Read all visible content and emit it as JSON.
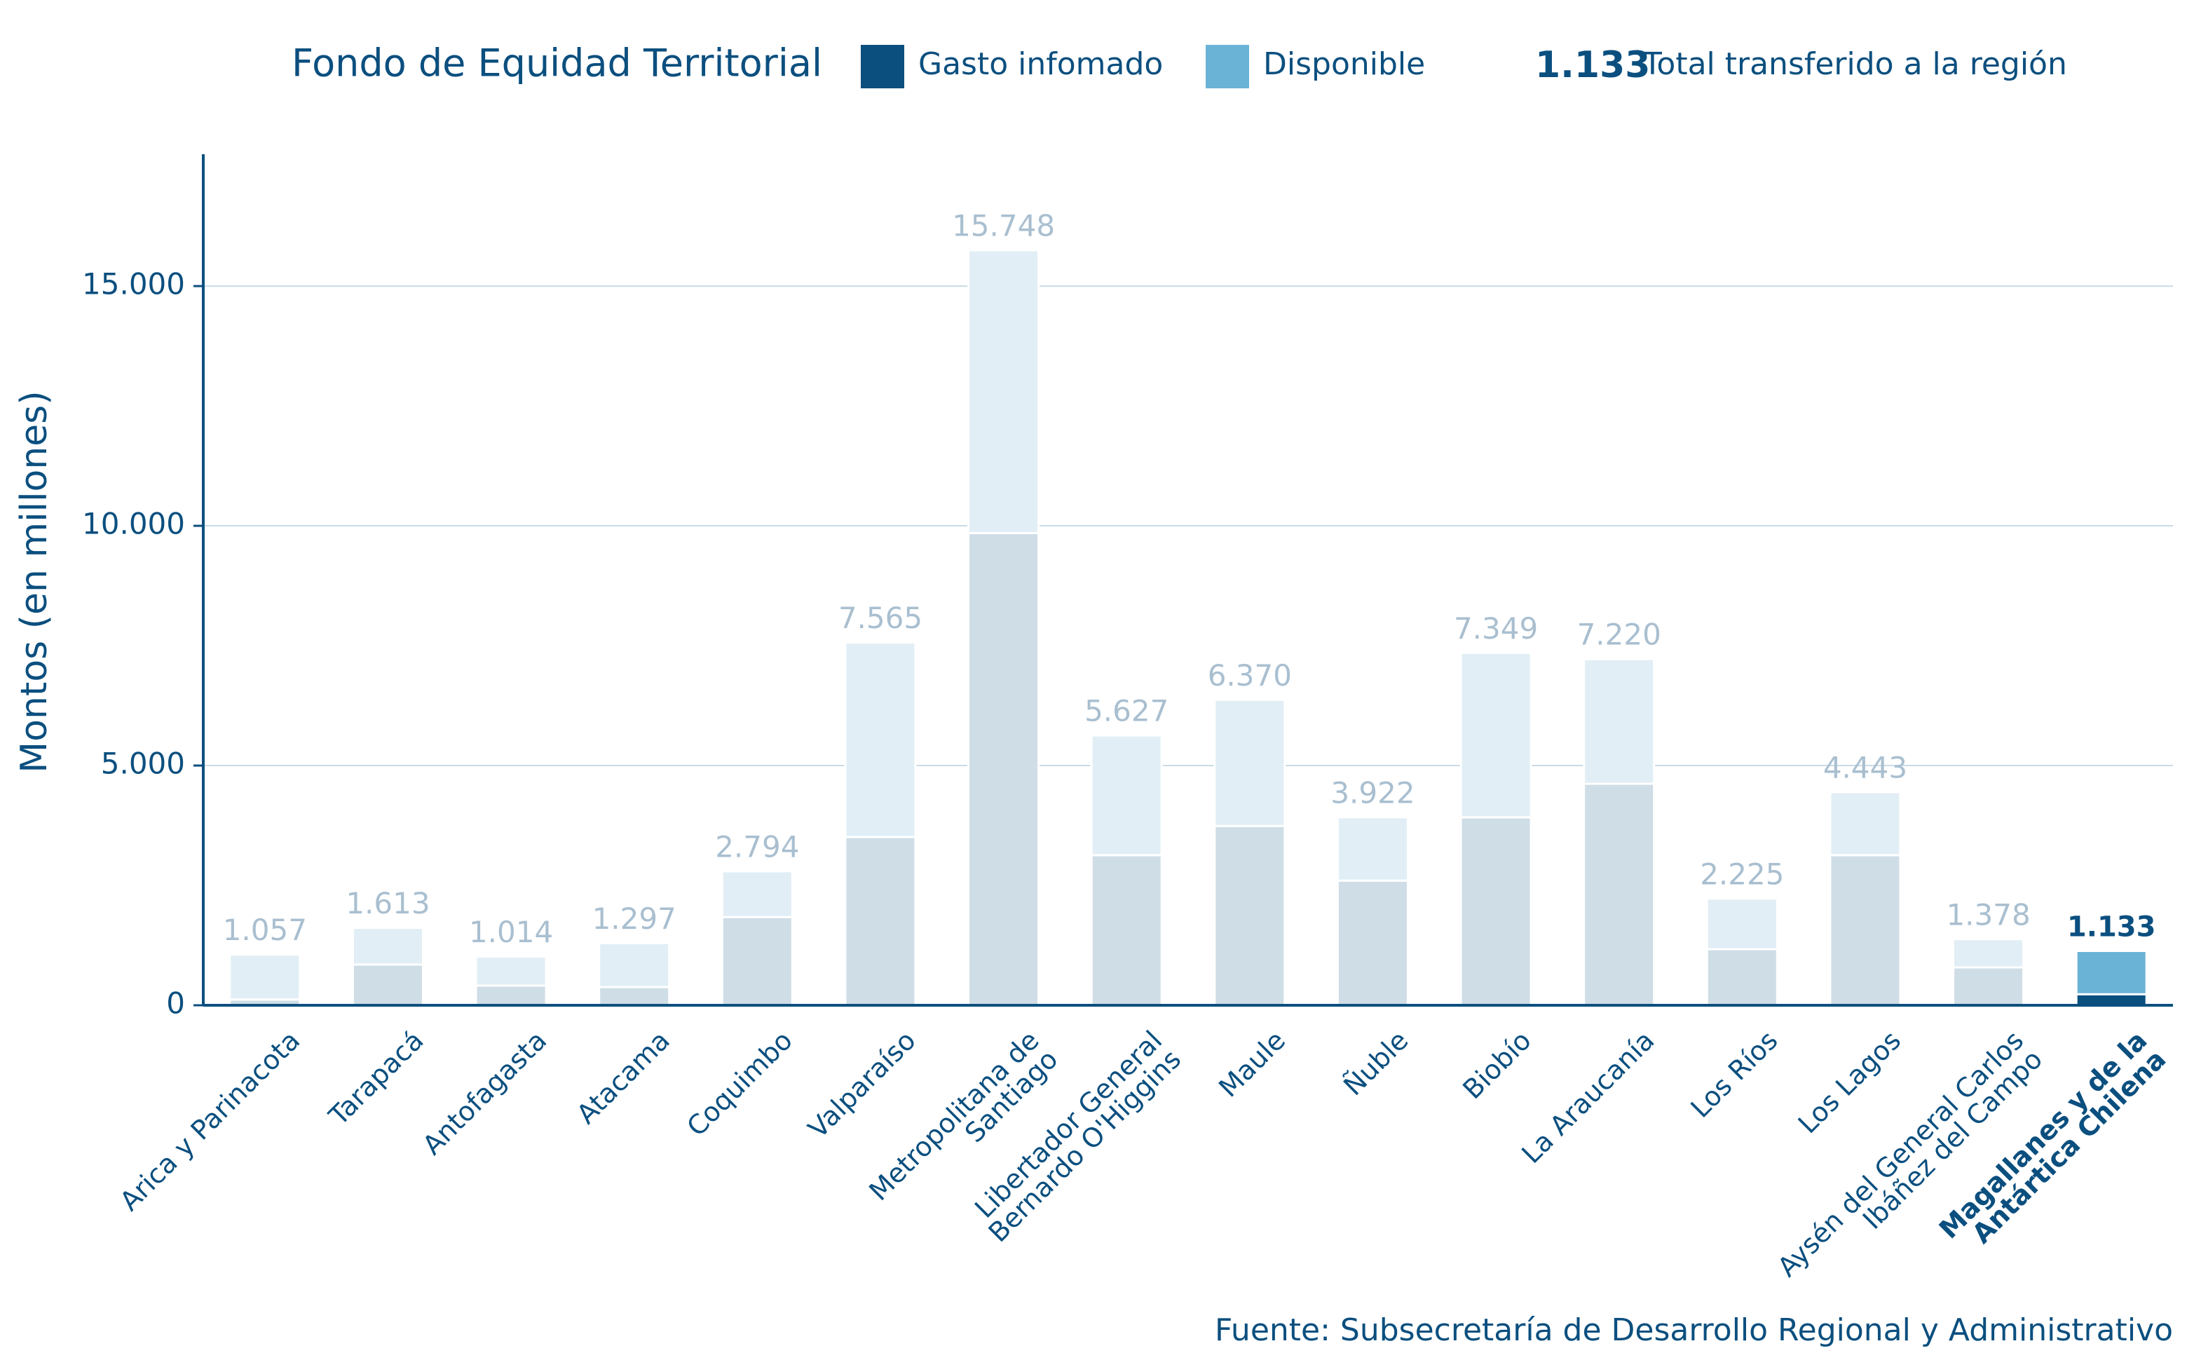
{
  "chart_data": {
    "type": "stacked_bar",
    "title": "Fondo de Equidad Territorial",
    "ylabel": "Montos (en millones)",
    "source": "Fuente: Subsecretaría de Desarrollo Regional y Administrativo",
    "legend_total_text": "Total transferido a la región",
    "categories": [
      "Arica y Parinacota",
      "Tarapacá",
      "Antofagasta",
      "Atacama",
      "Coquimbo",
      "Valparaíso",
      "Metropolitana de\nSantiago",
      "Libertador General\nBernardo O'Higgins",
      "Maule",
      "Ñuble",
      "Biobío",
      "La Araucanía",
      "Los Ríos",
      "Los Lagos",
      "Aysén del General Carlos\nIbáñez del Campo",
      "Magallanes y de la\nAntártica Chilena"
    ],
    "highlight_index": 15,
    "series": [
      {
        "name": "Gasto infomado",
        "color": "#0b4f7f",
        "faded_color": "#cfdde6",
        "values": [
          120,
          850,
          410,
          380,
          1840,
          3510,
          9850,
          3130,
          3740,
          2600,
          3920,
          4620,
          1170,
          3130,
          790,
          230
        ]
      },
      {
        "name": "Disponible",
        "color": "#6bb3d6",
        "faded_color": "#e1eef5",
        "values": [
          937,
          763,
          604,
          917,
          954,
          4055,
          5898,
          2497,
          2630,
          1322,
          3429,
          2600,
          1055,
          1313,
          588,
          903
        ]
      }
    ],
    "totals": {
      "values": [
        1057,
        1613,
        1014,
        1297,
        2794,
        7565,
        15748,
        5627,
        6370,
        3922,
        7349,
        7220,
        2225,
        4443,
        1378,
        1133
      ],
      "value_labels": [
        "1.057",
        "1.613",
        "1.014",
        "1.297",
        "2.794",
        "7.565",
        "15.748",
        "5.627",
        "6.370",
        "3.922",
        "7.349",
        "7.220",
        "2.225",
        "4.443",
        "1.378",
        "1.133"
      ]
    },
    "ylim": [
      0,
      17750
    ],
    "yticks": [
      {
        "value": 0,
        "label": "0"
      },
      {
        "value": 5000,
        "label": "5.000"
      },
      {
        "value": 10000,
        "label": "10.000"
      },
      {
        "value": 15000,
        "label": "15.000"
      }
    ],
    "grid": true
  }
}
